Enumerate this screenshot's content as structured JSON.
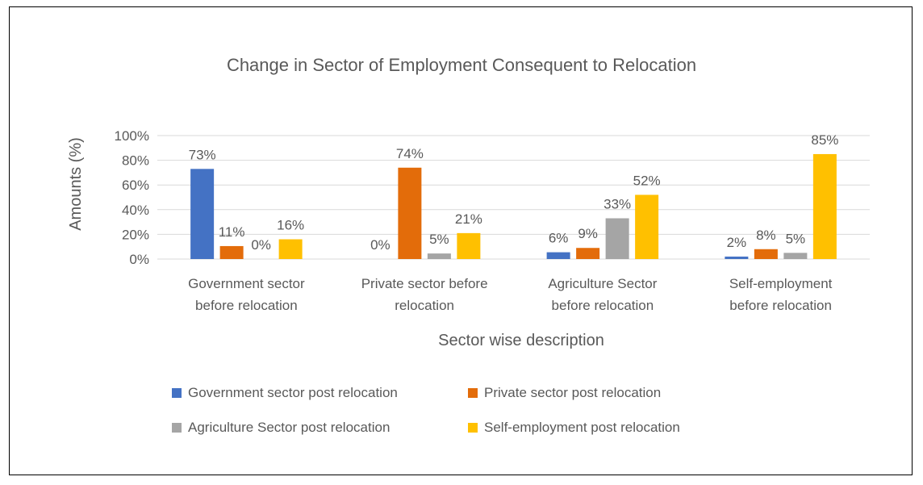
{
  "chart_data": {
    "type": "bar",
    "title": "Change in Sector of Employment Consequent to Relocation",
    "xlabel": "Sector wise description",
    "ylabel": "Amounts (%)",
    "ylim": [
      0,
      100
    ],
    "yticks": [
      0,
      20,
      40,
      60,
      80,
      100
    ],
    "ytick_labels": [
      "0%",
      "20%",
      "40%",
      "60%",
      "80%",
      "100%"
    ],
    "categories": [
      [
        "Government sector",
        "before relocation"
      ],
      [
        "Private sector before",
        "relocation"
      ],
      [
        "Agriculture Sector",
        "before relocation"
      ],
      [
        "Self-employment",
        "before relocation"
      ]
    ],
    "series": [
      {
        "name": "Government sector post relocation",
        "color": "#4472C4",
        "values": [
          73,
          0,
          5.5,
          2
        ],
        "labels": [
          "73%",
          "0%",
          "6%",
          "2%"
        ]
      },
      {
        "name": "Private sector post relocation",
        "color": "#E36C0A",
        "values": [
          10.5,
          74,
          9,
          8
        ],
        "labels": [
          "11%",
          "74%",
          "9%",
          "8%"
        ]
      },
      {
        "name": "Agriculture Sector post relocation",
        "color": "#A5A5A5",
        "values": [
          0,
          4.5,
          33,
          5
        ],
        "labels": [
          "0%",
          "5%",
          "33%",
          "5%"
        ]
      },
      {
        "name": "Self-employment post relocation",
        "color": "#FFC000",
        "values": [
          16,
          21,
          52,
          85
        ],
        "labels": [
          "16%",
          "21%",
          "52%",
          "85%"
        ]
      }
    ],
    "grid": true,
    "legend_position": "bottom"
  }
}
